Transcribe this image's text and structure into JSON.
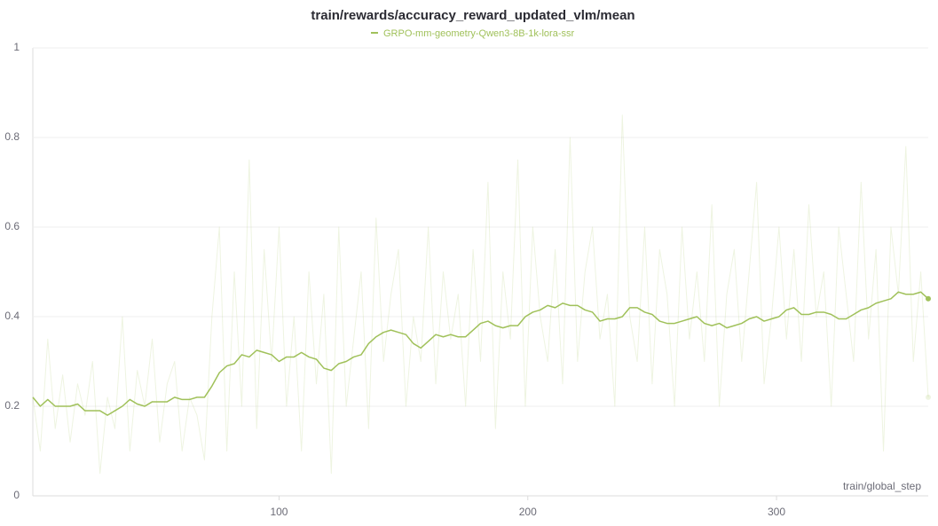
{
  "chart_data": {
    "type": "line",
    "title": "train/rewards/accuracy_reward_updated_vlm/mean",
    "x_label": "train/global_step",
    "x": [
      1,
      4,
      7,
      10,
      13,
      16,
      19,
      22,
      25,
      28,
      31,
      34,
      37,
      40,
      43,
      46,
      49,
      52,
      55,
      58,
      61,
      64,
      67,
      70,
      73,
      76,
      79,
      82,
      85,
      88,
      91,
      94,
      97,
      100,
      103,
      106,
      109,
      112,
      115,
      118,
      121,
      124,
      127,
      130,
      133,
      136,
      139,
      142,
      145,
      148,
      151,
      154,
      157,
      160,
      163,
      166,
      169,
      172,
      175,
      178,
      181,
      184,
      187,
      190,
      193,
      196,
      199,
      202,
      205,
      208,
      211,
      214,
      217,
      220,
      223,
      226,
      229,
      232,
      235,
      238,
      241,
      244,
      247,
      250,
      253,
      256,
      259,
      262,
      265,
      268,
      271,
      274,
      277,
      280,
      283,
      286,
      289,
      292,
      295,
      298,
      301,
      304,
      307,
      310,
      313,
      316,
      319,
      322,
      325,
      328,
      331,
      334,
      337,
      340,
      343,
      346,
      349,
      352,
      355,
      358,
      361
    ],
    "series": [
      {
        "name": "GRPO-mm-geometry-Qwen3-8B-1k-lora-ssr",
        "color": "#a0c15a",
        "values": [
          0.22,
          0.2,
          0.215,
          0.2,
          0.2,
          0.2,
          0.205,
          0.19,
          0.19,
          0.19,
          0.18,
          0.19,
          0.2,
          0.215,
          0.205,
          0.2,
          0.21,
          0.21,
          0.21,
          0.22,
          0.215,
          0.215,
          0.22,
          0.22,
          0.245,
          0.275,
          0.29,
          0.295,
          0.315,
          0.31,
          0.325,
          0.32,
          0.315,
          0.3,
          0.31,
          0.31,
          0.32,
          0.31,
          0.305,
          0.285,
          0.28,
          0.295,
          0.3,
          0.31,
          0.315,
          0.34,
          0.355,
          0.365,
          0.37,
          0.365,
          0.36,
          0.34,
          0.33,
          0.345,
          0.36,
          0.355,
          0.36,
          0.355,
          0.355,
          0.37,
          0.385,
          0.39,
          0.38,
          0.375,
          0.38,
          0.38,
          0.4,
          0.41,
          0.415,
          0.425,
          0.42,
          0.43,
          0.425,
          0.425,
          0.415,
          0.41,
          0.39,
          0.395,
          0.395,
          0.4,
          0.42,
          0.42,
          0.41,
          0.405,
          0.39,
          0.385,
          0.385,
          0.39,
          0.395,
          0.4,
          0.385,
          0.38,
          0.385,
          0.375,
          0.38,
          0.385,
          0.395,
          0.4,
          0.39,
          0.395,
          0.4,
          0.415,
          0.42,
          0.405,
          0.405,
          0.41,
          0.41,
          0.405,
          0.395,
          0.395,
          0.405,
          0.415,
          0.42,
          0.43,
          0.435,
          0.44,
          0.455,
          0.45,
          0.45,
          0.455,
          0.44
        ],
        "raw_values": [
          0.22,
          0.1,
          0.35,
          0.15,
          0.27,
          0.12,
          0.25,
          0.18,
          0.3,
          0.05,
          0.22,
          0.15,
          0.4,
          0.1,
          0.28,
          0.2,
          0.35,
          0.12,
          0.25,
          0.3,
          0.1,
          0.22,
          0.18,
          0.08,
          0.4,
          0.6,
          0.1,
          0.5,
          0.2,
          0.75,
          0.15,
          0.55,
          0.3,
          0.6,
          0.2,
          0.4,
          0.1,
          0.5,
          0.25,
          0.45,
          0.05,
          0.6,
          0.2,
          0.35,
          0.5,
          0.15,
          0.62,
          0.3,
          0.45,
          0.55,
          0.2,
          0.4,
          0.3,
          0.6,
          0.25,
          0.5,
          0.35,
          0.45,
          0.2,
          0.55,
          0.3,
          0.7,
          0.15,
          0.5,
          0.35,
          0.75,
          0.2,
          0.6,
          0.4,
          0.3,
          0.55,
          0.25,
          0.8,
          0.3,
          0.5,
          0.6,
          0.35,
          0.45,
          0.2,
          0.85,
          0.4,
          0.3,
          0.6,
          0.25,
          0.55,
          0.45,
          0.2,
          0.6,
          0.35,
          0.5,
          0.3,
          0.65,
          0.2,
          0.45,
          0.55,
          0.3,
          0.5,
          0.7,
          0.25,
          0.4,
          0.6,
          0.35,
          0.55,
          0.3,
          0.65,
          0.4,
          0.5,
          0.2,
          0.6,
          0.45,
          0.3,
          0.7,
          0.35,
          0.55,
          0.1,
          0.6,
          0.45,
          0.78,
          0.3,
          0.5,
          0.22
        ]
      }
    ],
    "xlim": [
      1,
      361
    ],
    "xticks": [
      100,
      200,
      300
    ],
    "ylim": [
      0,
      1
    ],
    "yticks": [
      0,
      0.2,
      0.4,
      0.6,
      0.8,
      1
    ],
    "grid": true
  }
}
